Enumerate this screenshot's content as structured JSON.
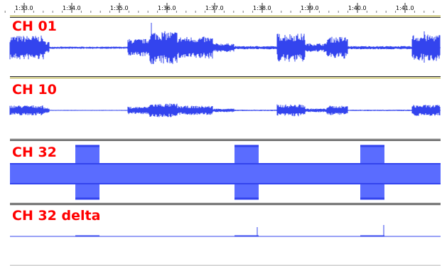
{
  "timeline": {
    "ticks": [
      "1:33.0",
      "1:34.0",
      "1:35.0",
      "1:36.0",
      "1:37.0",
      "1:38.0",
      "1:39.0",
      "1:40.0",
      "1:41.0"
    ]
  },
  "colors": {
    "waveform": "#3344ee",
    "waveform_fill": "#5a6cff",
    "label": "#ff0000",
    "separator_gold": "#9a9000",
    "separator_dark": "#222222"
  },
  "tracks": [
    {
      "label": "CH 01"
    },
    {
      "label": "CH 10"
    },
    {
      "label": "CH 32"
    },
    {
      "label": "CH 32 delta"
    }
  ]
}
